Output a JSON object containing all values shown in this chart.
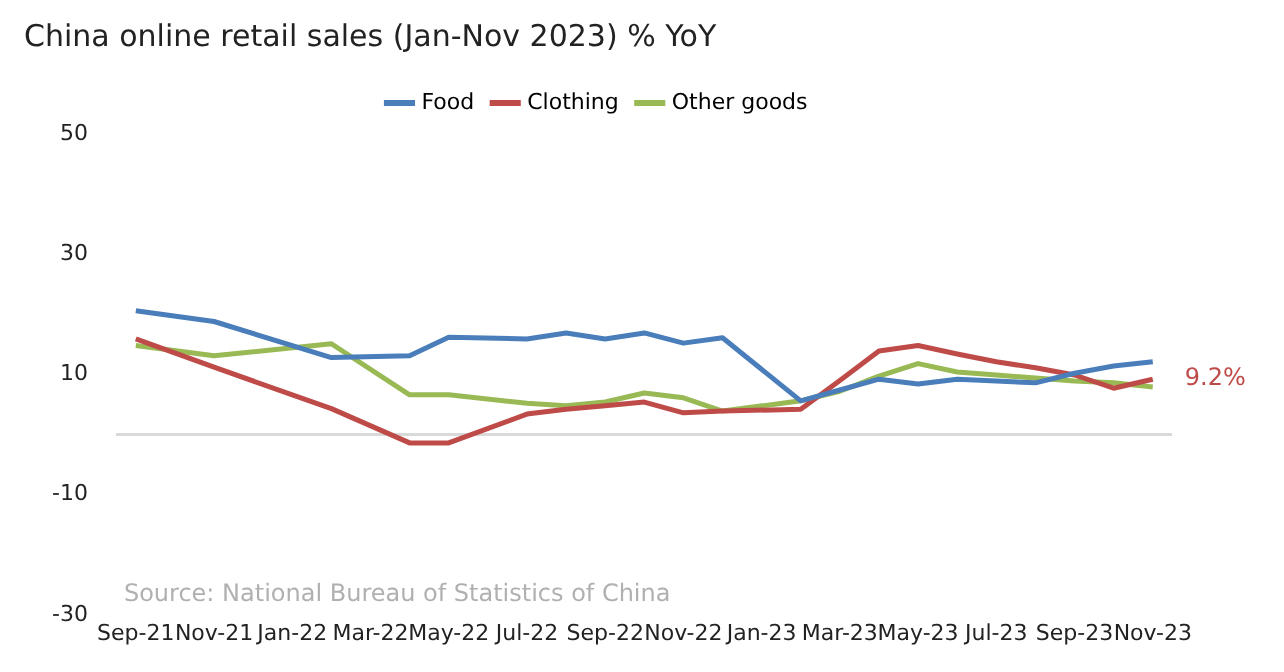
{
  "chart_data": {
    "type": "line",
    "title": "China online retail sales (Jan-Nov 2023) % YoY",
    "x": [
      "2021-09",
      "2021-11",
      "2022-02",
      "2022-04",
      "2022-05",
      "2022-07",
      "2022-08",
      "2022-09",
      "2022-10",
      "2022-11",
      "2022-12",
      "2023-02",
      "2023-03",
      "2023-04",
      "2023-05",
      "2023-06",
      "2023-07",
      "2023-08",
      "2023-09",
      "2023-10",
      "2023-11"
    ],
    "series": [
      {
        "name": "Food",
        "color": "#4a7ebb",
        "values": [
          20.6,
          18.8,
          12.8,
          13.1,
          16.2,
          15.9,
          16.9,
          15.9,
          16.9,
          15.2,
          16.1,
          5.6,
          7.4,
          9.2,
          8.4,
          9.2,
          8.9,
          8.6,
          10.2,
          11.4,
          12.1
        ]
      },
      {
        "name": "Clothing",
        "color": "#be4b48",
        "values": [
          15.9,
          11.2,
          4.3,
          -1.4,
          -1.4,
          3.4,
          4.2,
          4.8,
          5.4,
          3.6,
          3.9,
          4.2,
          9.0,
          13.9,
          14.8,
          13.4,
          12.1,
          11.1,
          9.9,
          7.7,
          9.2
        ]
      },
      {
        "name": "Other goods",
        "color": "#98b954",
        "values": [
          14.8,
          13.1,
          15.1,
          6.6,
          6.6,
          5.2,
          4.8,
          5.4,
          6.9,
          6.1,
          3.9,
          5.6,
          7.2,
          9.7,
          11.8,
          10.4,
          9.9,
          9.4,
          8.9,
          8.6,
          7.9
        ]
      }
    ],
    "xlim": [
      "2021-08-16",
      "2023-11-16"
    ],
    "xticks": [
      {
        "value": "2021-09",
        "label": "Sep-21"
      },
      {
        "value": "2021-11",
        "label": "Nov-21"
      },
      {
        "value": "2022-01",
        "label": "Jan-22"
      },
      {
        "value": "2022-03",
        "label": "Mar-22"
      },
      {
        "value": "2022-05",
        "label": "May-22"
      },
      {
        "value": "2022-07",
        "label": "Jul-22"
      },
      {
        "value": "2022-09",
        "label": "Sep-22"
      },
      {
        "value": "2022-11",
        "label": "Nov-22"
      },
      {
        "value": "2023-01",
        "label": "Jan-23"
      },
      {
        "value": "2023-03",
        "label": "Mar-23"
      },
      {
        "value": "2023-05",
        "label": "May-23"
      },
      {
        "value": "2023-07",
        "label": "Jul-23"
      },
      {
        "value": "2023-09",
        "label": "Sep-23"
      },
      {
        "value": "2023-11",
        "label": "Nov-23"
      }
    ],
    "ylim": [
      -30,
      50
    ],
    "yticks": [
      -30,
      -10,
      10,
      30,
      50
    ],
    "ref_lines": [
      {
        "axis": "y",
        "value": 0,
        "color": "#d9d9d9"
      }
    ],
    "annotations": [
      {
        "text": "9.2%",
        "x": "2023-11",
        "y": 9.2
      },
      "Source: National Bureau of Statistics of China"
    ],
    "legend": "top",
    "grid": false,
    "marker": "none",
    "line_style": "solid"
  }
}
